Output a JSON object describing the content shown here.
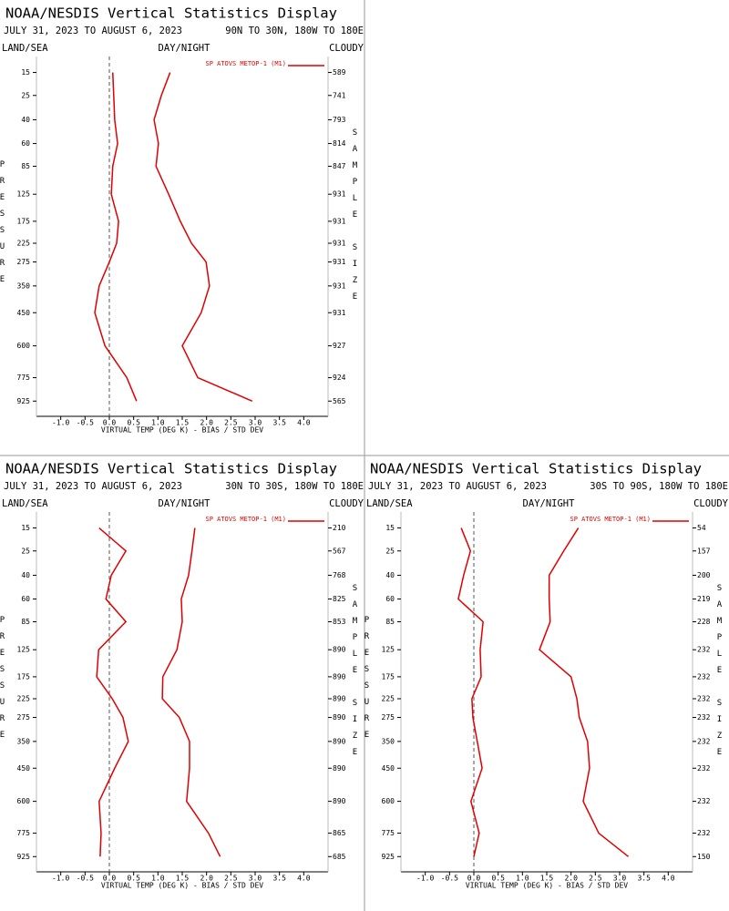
{
  "chart_data": [
    {
      "type": "line",
      "title": "NOAA/NESDIS Vertical Statistics Display",
      "date_range": "JULY 31, 2023 TO AUGUST 6, 2023",
      "region": "90N TO 30N, 180W TO 180E",
      "land_sea": "LAND/SEA",
      "day_night": "DAY/NIGHT",
      "cloud": "CLOUDY",
      "xlabel": "VIRTUAL TEMP (DEG K) - BIAS / STD DEV",
      "ylabel": "PRESSURE",
      "y2label": "SAMPLE SIZE",
      "y": [
        15,
        25,
        40,
        60,
        85,
        125,
        175,
        225,
        275,
        350,
        450,
        600,
        775,
        925
      ],
      "sample_size": [
        589,
        741,
        793,
        814,
        847,
        931,
        931,
        931,
        931,
        931,
        931,
        927,
        924,
        565
      ],
      "series": [
        {
          "name": "SP ATOVS METOP-1 (M1)",
          "color": "#e00000",
          "bias": [
            0.07,
            0.09,
            0.11,
            0.17,
            0.07,
            0.04,
            0.19,
            0.15,
            0.0,
            -0.21,
            -0.3,
            -0.09,
            0.36,
            0.56
          ],
          "std_dev": [
            1.25,
            1.07,
            0.92,
            1.01,
            0.96,
            1.22,
            1.46,
            1.69,
            1.99,
            2.06,
            1.89,
            1.5,
            1.82,
            2.94
          ]
        }
      ],
      "xlim": [
        -1.5,
        4.5
      ],
      "ylim": [
        10,
        1033
      ],
      "xticks": [
        {
          "value": -1,
          "label": "-1.0"
        },
        {
          "value": -0.5,
          "label": "-0.5"
        },
        {
          "value": 0,
          "label": "0.0"
        },
        {
          "value": 0.5,
          "label": "0.5"
        },
        {
          "value": 1,
          "label": "1.0"
        },
        {
          "value": 1.5,
          "label": "1.5"
        },
        {
          "value": 2,
          "label": "2.0"
        },
        {
          "value": 2.5,
          "label": "2.5"
        },
        {
          "value": 3,
          "label": "3.0"
        },
        {
          "value": 3.5,
          "label": "3.5"
        },
        {
          "value": 4,
          "label": "4.0"
        }
      ]
    },
    {
      "type": "line",
      "title": "NOAA/NESDIS Vertical Statistics Display",
      "date_range": "JULY 31, 2023 TO AUGUST 6, 2023",
      "region": "30N TO 30S, 180W TO 180E",
      "land_sea": "LAND/SEA",
      "day_night": "DAY/NIGHT",
      "cloud": "CLOUDY",
      "xlabel": "VIRTUAL TEMP (DEG K) - BIAS / STD DEV",
      "ylabel": "PRESSURE",
      "y2label": "SAMPLE SIZE",
      "y": [
        15,
        25,
        40,
        60,
        85,
        125,
        175,
        225,
        275,
        350,
        450,
        600,
        775,
        925
      ],
      "sample_size": [
        210,
        567,
        768,
        825,
        853,
        890,
        890,
        890,
        890,
        890,
        890,
        890,
        865,
        685
      ],
      "series": [
        {
          "name": "SP ATOVS METOP-1 (M1)",
          "color": "#e00000",
          "bias": [
            -0.21,
            0.34,
            0.04,
            -0.07,
            0.34,
            -0.22,
            -0.26,
            0.06,
            0.28,
            0.39,
            0.11,
            -0.21,
            -0.17,
            -0.19
          ],
          "std_dev": [
            1.76,
            1.7,
            1.63,
            1.48,
            1.5,
            1.39,
            1.1,
            1.09,
            1.44,
            1.65,
            1.65,
            1.59,
            2.04,
            2.28
          ]
        }
      ],
      "xlim": [
        -1.5,
        4.5
      ],
      "ylim": [
        10,
        1033
      ],
      "xticks": [
        {
          "value": -1,
          "label": "-1.0"
        },
        {
          "value": -0.5,
          "label": "-0.5"
        },
        {
          "value": 0,
          "label": "0.0"
        },
        {
          "value": 0.5,
          "label": "0.5"
        },
        {
          "value": 1,
          "label": "1.0"
        },
        {
          "value": 1.5,
          "label": "1.5"
        },
        {
          "value": 2,
          "label": "2.0"
        },
        {
          "value": 2.5,
          "label": "2.5"
        },
        {
          "value": 3,
          "label": "3.0"
        },
        {
          "value": 3.5,
          "label": "3.5"
        },
        {
          "value": 4,
          "label": "4.0"
        }
      ]
    },
    {
      "type": "line",
      "title": "NOAA/NESDIS Vertical Statistics Display",
      "date_range": "JULY 31, 2023 TO AUGUST 6, 2023",
      "region": "30S TO 90S, 180W TO 180E",
      "land_sea": "LAND/SEA",
      "day_night": "DAY/NIGHT",
      "cloud": "CLOUDY",
      "xlabel": "VIRTUAL TEMP (DEG K) - BIAS / STD DEV",
      "ylabel": "PRESSURE",
      "y2label": "SAMPLE SIZE",
      "y": [
        15,
        25,
        40,
        60,
        85,
        125,
        175,
        225,
        275,
        350,
        450,
        600,
        775,
        925
      ],
      "sample_size": [
        54,
        157,
        200,
        219,
        228,
        232,
        232,
        232,
        232,
        232,
        232,
        232,
        232,
        150
      ],
      "series": [
        {
          "name": "SP ATOVS METOP-1 (M1)",
          "color": "#e00000",
          "bias": [
            -0.26,
            -0.07,
            -0.21,
            -0.32,
            0.19,
            0.13,
            0.15,
            -0.04,
            -0.02,
            0.07,
            0.17,
            -0.06,
            0.11,
            0.0
          ],
          "std_dev": [
            2.15,
            1.85,
            1.55,
            1.55,
            1.57,
            1.35,
            2.0,
            2.12,
            2.17,
            2.34,
            2.38,
            2.25,
            2.57,
            3.18
          ]
        }
      ],
      "xlim": [
        -1.5,
        4.5
      ],
      "ylim": [
        10,
        1033
      ],
      "xticks": [
        {
          "value": -1,
          "label": "-1.0"
        },
        {
          "value": -0.5,
          "label": "-0.5"
        },
        {
          "value": 0,
          "label": "0.0"
        },
        {
          "value": 0.5,
          "label": "0.5"
        },
        {
          "value": 1,
          "label": "1.0"
        },
        {
          "value": 1.5,
          "label": "1.5"
        },
        {
          "value": 2,
          "label": "2.0"
        },
        {
          "value": 2.5,
          "label": "2.5"
        },
        {
          "value": 3,
          "label": "3.0"
        },
        {
          "value": 3.5,
          "label": "3.5"
        },
        {
          "value": 4,
          "label": "4.0"
        }
      ]
    }
  ]
}
